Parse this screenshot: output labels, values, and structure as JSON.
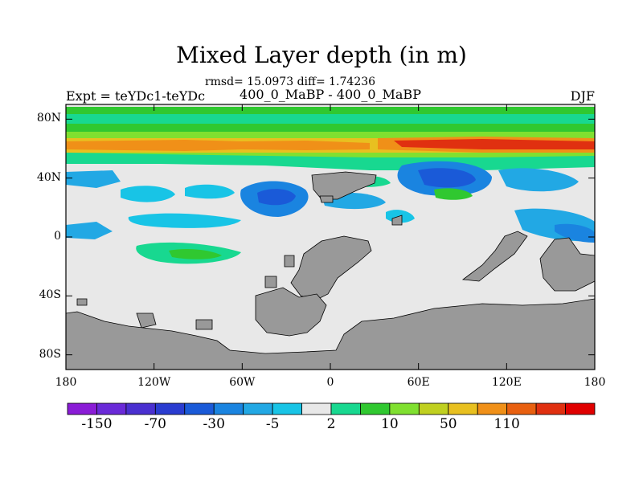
{
  "title": "Mixed Layer depth (in m)",
  "stats": "rmsd= 15.0973 diff= 1.74236",
  "experiment": "Expt = teYDc1-teYDc",
  "period": "400_0_MaBP - 400_0_MaBP",
  "season": "DJF",
  "map": {
    "lon_range": [
      -180,
      180
    ],
    "lat_range": [
      -90,
      90
    ],
    "lat_ticks": [
      {
        "value": 80,
        "label": "80N"
      },
      {
        "value": 40,
        "label": "40N"
      },
      {
        "value": 0,
        "label": "0"
      },
      {
        "value": -40,
        "label": "40S"
      },
      {
        "value": -80,
        "label": "80S"
      }
    ],
    "lon_ticks": [
      {
        "value": -180,
        "label": "180"
      },
      {
        "value": -120,
        "label": "120W"
      },
      {
        "value": -60,
        "label": "60W"
      },
      {
        "value": 0,
        "label": "0"
      },
      {
        "value": 60,
        "label": "60E"
      },
      {
        "value": 120,
        "label": "120E"
      },
      {
        "value": 180,
        "label": "180"
      }
    ],
    "land_color": "#999999",
    "neutral_color": "#e8e8e8"
  },
  "colorbar": {
    "colors": [
      "#8a1cd6",
      "#6a2ad8",
      "#4a30d0",
      "#2a3cd0",
      "#1a5ad8",
      "#1a84e0",
      "#22a8e4",
      "#18c4e6",
      "#e8e8e8",
      "#18d890",
      "#30c830",
      "#80e030",
      "#c0d020",
      "#e8c020",
      "#f09018",
      "#e86010",
      "#e03010",
      "#e00000"
    ],
    "labels": [
      "-150",
      "-70",
      "-30",
      "-5",
      "2",
      "10",
      "50",
      "110"
    ]
  }
}
